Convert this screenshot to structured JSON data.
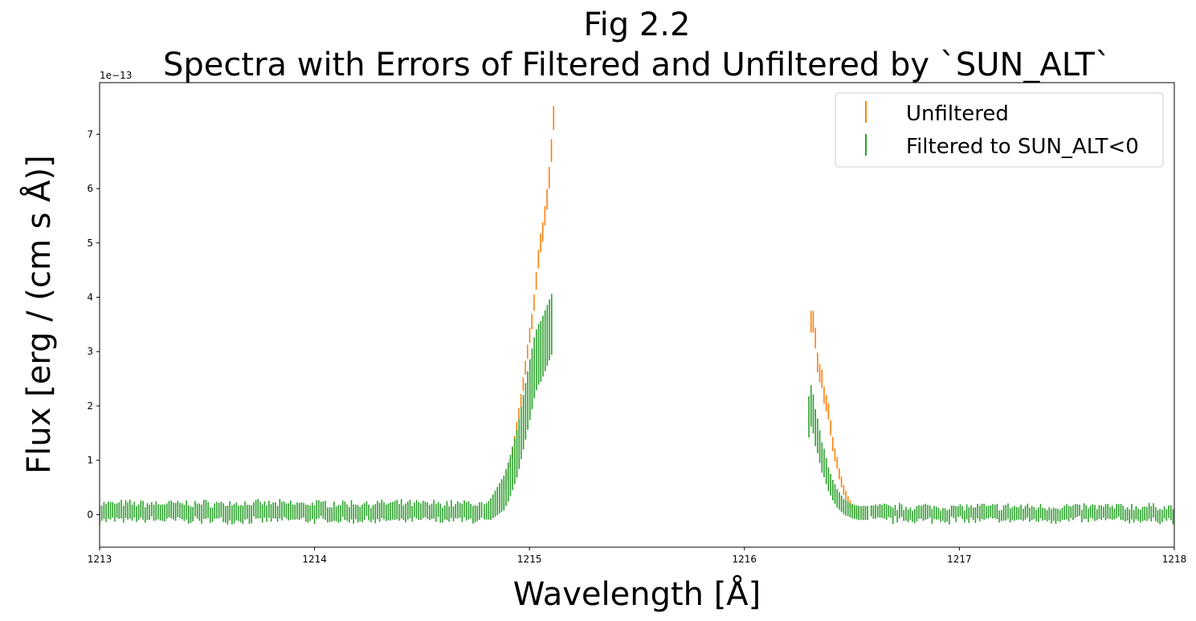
{
  "chart_data": {
    "type": "scatter",
    "title": "Fig 2.2",
    "subtitle": "Spectra with Errors of Filtered and Unfiltered by `SUN_ALT`",
    "xlabel": "Wavelength [Å]",
    "ylabel": "Flux [erg / (cm s Å)]",
    "y_offset_label": "1e−13",
    "xlim": [
      1213,
      1218
    ],
    "ylim": [
      -0.6,
      7.95
    ],
    "x_ticks": [
      "1213",
      "1214",
      "1215",
      "1216",
      "1217",
      "1218"
    ],
    "y_ticks": [
      "0",
      "1",
      "2",
      "3",
      "4",
      "5",
      "6",
      "7"
    ],
    "legend_position": "top-right",
    "grid": false,
    "series": [
      {
        "name": "Unfiltered",
        "color": "#ff7f0e",
        "marker": "error-bar",
        "segments": [
          {
            "x_start": 1214.89,
            "x_end": 1215.12,
            "x_step": 0.0101,
            "y": [
              0.55,
              0.72,
              0.95,
              1.15,
              1.35,
              1.6,
              1.85,
              2.1,
              2.4,
              2.7,
              3.0,
              3.3,
              3.55,
              3.9,
              4.3,
              4.7,
              5.0,
              5.2,
              5.5,
              5.8,
              6.2,
              6.7,
              7.3
            ],
            "err": [
              0.08,
              0.08,
              0.09,
              0.1,
              0.1,
              0.11,
              0.11,
              0.12,
              0.12,
              0.13,
              0.13,
              0.14,
              0.14,
              0.15,
              0.16,
              0.17,
              0.17,
              0.18,
              0.18,
              0.19,
              0.2,
              0.21,
              0.22
            ]
          },
          {
            "x_start": 1216.31,
            "x_end": 1216.54,
            "x_step": 0.0101,
            "y": [
              3.55,
              3.55,
              3.25,
              2.8,
              2.6,
              2.5,
              2.2,
              2.05,
              1.9,
              1.6,
              1.3,
              1.1,
              0.95,
              0.75,
              0.6,
              0.45,
              0.35,
              0.25,
              0.18,
              0.12,
              0.08,
              0.05,
              0.03
            ],
            "err": [
              0.2,
              0.2,
              0.19,
              0.18,
              0.17,
              0.17,
              0.16,
              0.15,
              0.15,
              0.14,
              0.13,
              0.12,
              0.11,
              0.1,
              0.1,
              0.09,
              0.09,
              0.09,
              0.08,
              0.08,
              0.08,
              0.08,
              0.08
            ]
          }
        ]
      },
      {
        "name": "Filtered to SUN_ALT<0",
        "color": "#2ca02c",
        "marker": "error-bar",
        "segments": [
          {
            "x_start": 1213.0,
            "x_end": 1214.78,
            "x_step": 0.0101,
            "y_baseline": 0.05,
            "err_baseline": 0.13
          },
          {
            "x_start": 1214.79,
            "x_end": 1215.13,
            "x_step": 0.0101,
            "y": [
              0.05,
              0.06,
              0.08,
              0.1,
              0.15,
              0.2,
              0.25,
              0.3,
              0.35,
              0.4,
              0.5,
              0.6,
              0.72,
              0.85,
              0.98,
              1.12,
              1.3,
              1.5,
              1.7,
              1.9,
              2.1,
              2.3,
              2.5,
              2.7,
              2.85,
              2.95,
              3.0,
              3.1,
              3.2,
              3.3,
              3.4,
              3.5
            ],
            "err": [
              0.14,
              0.15,
              0.17,
              0.2,
              0.22,
              0.24,
              0.26,
              0.28,
              0.3,
              0.32,
              0.34,
              0.36,
              0.38,
              0.4,
              0.42,
              0.44,
              0.46,
              0.48,
              0.5,
              0.52,
              0.54,
              0.56,
              0.56,
              0.56,
              0.56,
              0.56,
              0.56,
              0.56,
              0.56,
              0.56,
              0.56,
              0.56
            ]
          },
          {
            "x_start": 1216.3,
            "x_end": 1216.58,
            "x_step": 0.0101,
            "y": [
              1.8,
              2.0,
              1.85,
              1.6,
              1.45,
              1.25,
              1.05,
              0.95,
              0.8,
              0.65,
              0.55,
              0.45,
              0.38,
              0.3,
              0.25,
              0.2,
              0.15,
              0.12,
              0.1,
              0.08,
              0.06,
              0.05,
              0.04,
              0.03,
              0.03,
              0.03,
              0.03,
              0.03
            ],
            "err": [
              0.38,
              0.38,
              0.36,
              0.34,
              0.32,
              0.3,
              0.28,
              0.26,
              0.24,
              0.22,
              0.2,
              0.19,
              0.18,
              0.17,
              0.16,
              0.15,
              0.14,
              0.14,
              0.13,
              0.13,
              0.13,
              0.13,
              0.13,
              0.13,
              0.13,
              0.13,
              0.13,
              0.13
            ]
          },
          {
            "x_start": 1216.59,
            "x_end": 1218.0,
            "x_step": 0.0101,
            "y_baseline": 0.02,
            "err_baseline": 0.1
          }
        ]
      }
    ]
  }
}
